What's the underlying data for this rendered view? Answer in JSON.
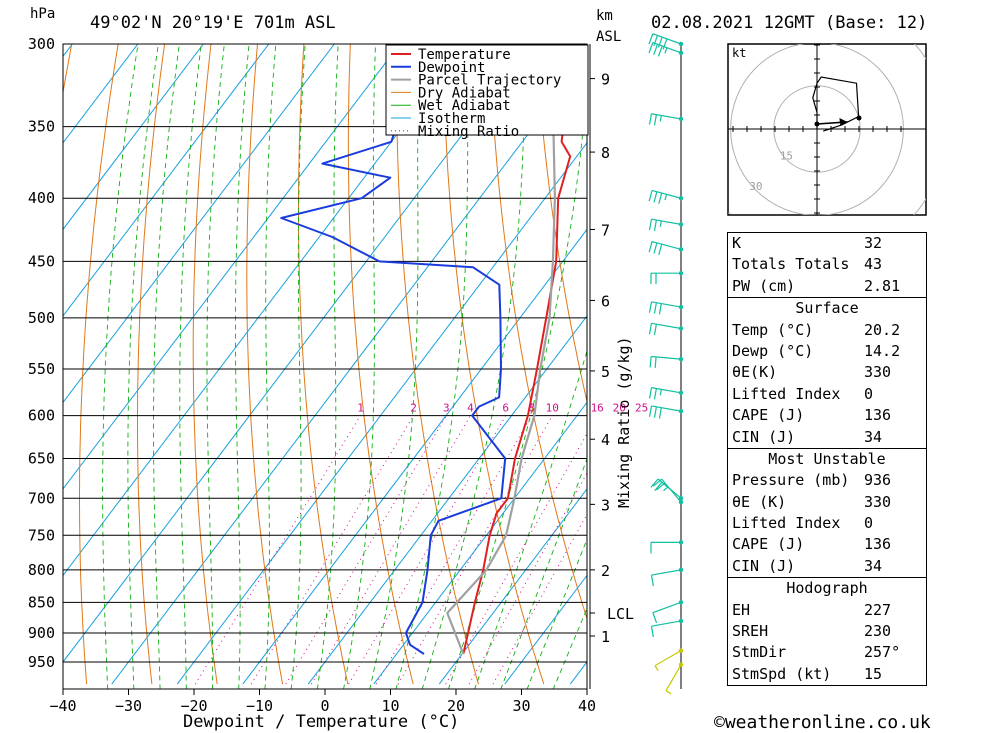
{
  "header": {
    "location": "49°02'N  20°19'E  701m  ASL",
    "datetime": "02.08.2021  12GMT  (Base: 12)",
    "pressure_unit": "hPa",
    "km_label_1": "km",
    "km_label_2": "ASL",
    "kt_label": "kt"
  },
  "footer": {
    "copyright": "©weatheronline.co.uk"
  },
  "colors": {
    "temperature": "#e02020",
    "dewpoint": "#1a3cdc",
    "parcel": "#a0a0a0",
    "dry_adiabat": "#e07818",
    "wet_adiabat": "#10b010",
    "isotherm": "#18a0e0",
    "mixing_ratio": "#d0108c"
  },
  "chart_data": {
    "type": "line",
    "title": "49°02'N  20°19'E  701m  ASL",
    "xlabel": "Dewpoint / Temperature (°C)",
    "ylabel": "hPa",
    "secondary_ylabel": "Mixing Ratio (g/kg)",
    "xlim": [
      -40,
      40
    ],
    "ylim": [
      990,
      300
    ],
    "x_ticks": [
      -40,
      -30,
      -20,
      -10,
      0,
      10,
      20,
      30,
      40
    ],
    "x_tick_labels": [
      "−40",
      "−30",
      "−20",
      "−10",
      "0",
      "10",
      "20",
      "30",
      "40"
    ],
    "pressure_levels": [
      300,
      350,
      400,
      450,
      500,
      550,
      600,
      650,
      700,
      750,
      800,
      850,
      900,
      950
    ],
    "km_ticks": [
      {
        "label": "9",
        "p": 320
      },
      {
        "label": "8",
        "p": 367
      },
      {
        "label": "7",
        "p": 424
      },
      {
        "label": "6",
        "p": 484
      },
      {
        "label": "5",
        "p": 552
      },
      {
        "label": "4",
        "p": 627
      },
      {
        "label": "3",
        "p": 708
      },
      {
        "label": "2",
        "p": 800
      },
      {
        "label": "LCL",
        "p": 867
      },
      {
        "label": "1",
        "p": 905
      }
    ],
    "mixing_ratio_labels": [
      "1",
      "2",
      "3",
      "4",
      "6",
      "8",
      "10",
      "16",
      "20",
      "25"
    ],
    "mixing_ratio_values": [
      1,
      2,
      3,
      4,
      6,
      8,
      10,
      16,
      20,
      25
    ],
    "legend": [
      "Temperature",
      "Dewpoint",
      "Parcel Trajectory",
      "Dry Adiabat",
      "Wet Adiabat",
      "Isotherm",
      "Mixing Ratio"
    ],
    "legend_position": "top-center",
    "series": [
      {
        "name": "Temperature",
        "points": [
          {
            "p": 936,
            "t": 20.2
          },
          {
            "p": 900,
            "t": 18.5
          },
          {
            "p": 870,
            "t": 17.0
          },
          {
            "p": 850,
            "t": 16.0
          },
          {
            "p": 800,
            "t": 13.5
          },
          {
            "p": 750,
            "t": 10.5
          },
          {
            "p": 720,
            "t": 9.0
          },
          {
            "p": 700,
            "t": 9.0
          },
          {
            "p": 650,
            "t": 5.5
          },
          {
            "p": 600,
            "t": 2.5
          },
          {
            "p": 550,
            "t": -1.5
          },
          {
            "p": 500,
            "t": -6.0
          },
          {
            "p": 450,
            "t": -11.0
          },
          {
            "p": 400,
            "t": -18.0
          },
          {
            "p": 370,
            "t": -21.0
          },
          {
            "p": 360,
            "t": -24.0
          },
          {
            "p": 340,
            "t": -27.0
          },
          {
            "p": 310,
            "t": -32.0
          },
          {
            "p": 300,
            "t": -34.0
          }
        ]
      },
      {
        "name": "Dewpoint",
        "points": [
          {
            "p": 936,
            "t": 14.2
          },
          {
            "p": 920,
            "t": 11.0
          },
          {
            "p": 900,
            "t": 9.0
          },
          {
            "p": 850,
            "t": 8.0
          },
          {
            "p": 800,
            "t": 5.0
          },
          {
            "p": 750,
            "t": 1.5
          },
          {
            "p": 730,
            "t": 1.0
          },
          {
            "p": 700,
            "t": 8.0
          },
          {
            "p": 650,
            "t": 4.0
          },
          {
            "p": 600,
            "t": -6.0
          },
          {
            "p": 590,
            "t": -6.0
          },
          {
            "p": 580,
            "t": -4.0
          },
          {
            "p": 550,
            "t": -7.0
          },
          {
            "p": 500,
            "t": -13.0
          },
          {
            "p": 470,
            "t": -17.0
          },
          {
            "p": 455,
            "t": -23.0
          },
          {
            "p": 450,
            "t": -38.0
          },
          {
            "p": 430,
            "t": -48.0
          },
          {
            "p": 415,
            "t": -58.0
          },
          {
            "p": 400,
            "t": -48.0
          },
          {
            "p": 385,
            "t": -46.0
          },
          {
            "p": 375,
            "t": -58.0
          },
          {
            "p": 360,
            "t": -50.0
          },
          {
            "p": 340,
            "t": -52.0
          },
          {
            "p": 310,
            "t": -56.0
          },
          {
            "p": 300,
            "t": -57.0
          }
        ]
      },
      {
        "name": "Parcel Trajectory",
        "points": [
          {
            "p": 936,
            "t": 20.2
          },
          {
            "p": 867,
            "t": 13.0
          },
          {
            "p": 800,
            "t": 14.0
          },
          {
            "p": 750,
            "t": 13.0
          },
          {
            "p": 700,
            "t": 10.0
          },
          {
            "p": 650,
            "t": 6.5
          },
          {
            "p": 600,
            "t": 3.5
          },
          {
            "p": 550,
            "t": -1.0
          },
          {
            "p": 500,
            "t": -5.5
          },
          {
            "p": 450,
            "t": -11.5
          },
          {
            "p": 400,
            "t": -18.5
          },
          {
            "p": 350,
            "t": -27.0
          },
          {
            "p": 310,
            "t": -34.0
          }
        ]
      }
    ],
    "wind_profile": [
      {
        "p": 300,
        "dir": 290,
        "kt": 40
      },
      {
        "p": 305,
        "dir": 290,
        "kt": 35
      },
      {
        "p": 345,
        "dir": 280,
        "kt": 25
      },
      {
        "p": 400,
        "dir": 285,
        "kt": 35
      },
      {
        "p": 420,
        "dir": 280,
        "kt": 25
      },
      {
        "p": 440,
        "dir": 285,
        "kt": 30
      },
      {
        "p": 460,
        "dir": 270,
        "kt": 20
      },
      {
        "p": 490,
        "dir": 280,
        "kt": 30
      },
      {
        "p": 510,
        "dir": 280,
        "kt": 20
      },
      {
        "p": 540,
        "dir": 275,
        "kt": 20
      },
      {
        "p": 575,
        "dir": 280,
        "kt": 25
      },
      {
        "p": 595,
        "dir": 280,
        "kt": 30
      },
      {
        "p": 700,
        "dir": 310,
        "kt": 20
      },
      {
        "p": 705,
        "dir": 320,
        "kt": 25
      },
      {
        "p": 760,
        "dir": 270,
        "kt": 10
      },
      {
        "p": 800,
        "dir": 260,
        "kt": 10
      },
      {
        "p": 850,
        "dir": 250,
        "kt": 10
      },
      {
        "p": 880,
        "dir": 260,
        "kt": 10
      },
      {
        "p": 930,
        "dir": 240,
        "kt": 5
      },
      {
        "p": 955,
        "dir": 210,
        "kt": 5
      }
    ],
    "hodograph": {
      "rings_kt": [
        15,
        30,
        45
      ],
      "trace_kt": [
        [
          3,
          -1
        ],
        [
          6,
          0
        ],
        [
          12,
          2
        ],
        [
          20,
          6
        ],
        [
          19,
          22
        ],
        [
          2,
          25
        ],
        [
          0,
          22
        ],
        [
          -2,
          15
        ],
        [
          0,
          8
        ],
        [
          0,
          0
        ]
      ],
      "storm_motion": {
        "dir": 257,
        "kt": 15
      }
    }
  },
  "indices": {
    "k_label": "K",
    "k_value": "32",
    "tt_label": "Totals Totals",
    "tt_value": "43",
    "pw_label": "PW (cm)",
    "pw_value": "2.81"
  },
  "surface": {
    "title": "Surface",
    "temp_label": "Temp (°C)",
    "temp_value": "20.2",
    "dewp_label": "Dewp (°C)",
    "dewp_value": "14.2",
    "theta_label": "θE(K)",
    "theta_value": "330",
    "li_label": "Lifted Index",
    "li_value": "0",
    "cape_label": "CAPE (J)",
    "cape_value": "136",
    "cin_label": "CIN (J)",
    "cin_value": "34"
  },
  "most_unstable": {
    "title": "Most Unstable",
    "pressure_label": "Pressure (mb)",
    "pressure_value": "936",
    "theta_label": "θE (K)",
    "theta_value": "330",
    "li_label": "Lifted Index",
    "li_value": "0",
    "cape_label": "CAPE (J)",
    "cape_value": "136",
    "cin_label": "CIN (J)",
    "cin_value": "34"
  },
  "hodograph_stats": {
    "title": "Hodograph",
    "eh_label": "EH",
    "eh_value": "227",
    "sreh_label": "SREH",
    "sreh_value": "230",
    "stmdir_label": "StmDir",
    "stmdir_value": "257°",
    "stmspd_label": "StmSpd (kt)",
    "stmspd_value": "15"
  }
}
